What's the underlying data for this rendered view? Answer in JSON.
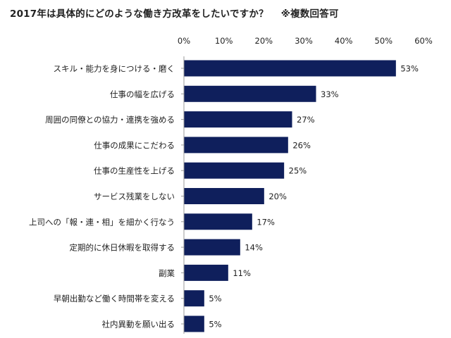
{
  "title": "2017年は具体的にどのような働き方改革をしたいですか？",
  "note": "※複数回答可",
  "chart_data": {
    "type": "bar",
    "orientation": "horizontal",
    "categories": [
      "スキル・能力を身につける・磨く",
      "仕事の幅を広げる",
      "周囲の同僚との協力・連携を強める",
      "仕事の成果にこだわる",
      "仕事の生産性を上げる",
      "サービス残業をしない",
      "上司への「報・連・相」を細かく行なう",
      "定期的に休日休暇を取得する",
      "副業",
      "早朝出勤など働く時間帯を変える",
      "社内異動を願い出る"
    ],
    "values": [
      53,
      33,
      27,
      26,
      25,
      20,
      17,
      14,
      11,
      5,
      5
    ],
    "value_labels": [
      "53%",
      "33%",
      "27%",
      "26%",
      "25%",
      "20%",
      "17%",
      "14%",
      "11%",
      "5%",
      "5%"
    ],
    "x_ticks": [
      0,
      10,
      20,
      30,
      40,
      50,
      60
    ],
    "x_tick_labels": [
      "0%",
      "10%",
      "20%",
      "30%",
      "40%",
      "50%",
      "60%"
    ],
    "xlim": [
      0,
      60
    ],
    "bar_color": "#0f1f5c",
    "grid": false,
    "axis_position": "top"
  }
}
